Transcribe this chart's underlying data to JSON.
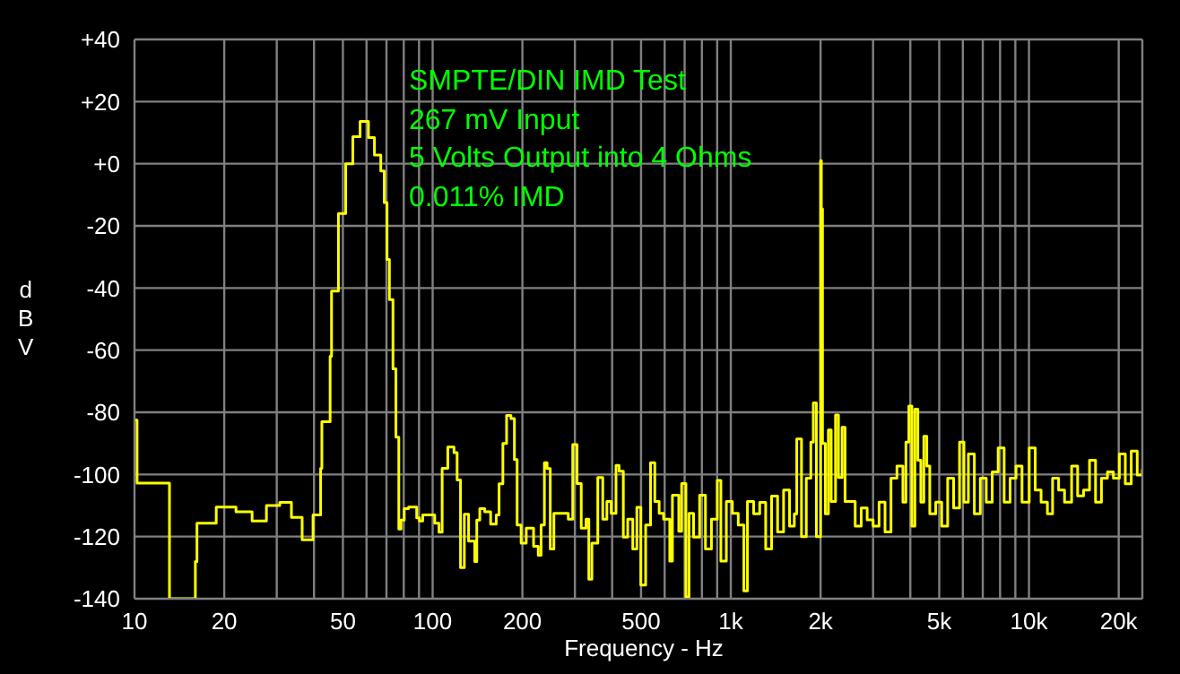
{
  "chart_data": {
    "type": "step",
    "xlabel": "Frequency - Hz",
    "ylabel": "dBV",
    "annotations": [
      "SMPTE/DIN IMD Test",
      "267 mV Input",
      "5 Volts Output into 4 Ohms",
      "0.011% IMD"
    ],
    "log": "x",
    "grid": true,
    "color": "#ffff00",
    "xlim": [
      10,
      24000
    ],
    "ylim": [
      -140,
      40
    ],
    "xticks": [
      10,
      20,
      {
        "value": 30,
        "label": null
      },
      {
        "value": 40,
        "label": null
      },
      50,
      {
        "value": 60,
        "label": null
      },
      {
        "value": 70,
        "label": null
      },
      {
        "value": 80,
        "label": null
      },
      {
        "value": 90,
        "label": null
      },
      100,
      200,
      {
        "value": 300,
        "label": null
      },
      {
        "value": 400,
        "label": null
      },
      500,
      {
        "value": 600,
        "label": null
      },
      {
        "value": 700,
        "label": null
      },
      {
        "value": 800,
        "label": null
      },
      {
        "value": 900,
        "label": null
      },
      {
        "value": 1000,
        "label": "1k"
      },
      {
        "value": 2000,
        "label": "2k"
      },
      {
        "value": 3000,
        "label": null
      },
      {
        "value": 4000,
        "label": null
      },
      {
        "value": 5000,
        "label": "5k"
      },
      {
        "value": 6000,
        "label": null
      },
      {
        "value": 7000,
        "label": null
      },
      {
        "value": 8000,
        "label": null
      },
      {
        "value": 9000,
        "label": null
      },
      {
        "value": 10000,
        "label": "10k"
      },
      {
        "value": 20000,
        "label": "20k"
      }
    ],
    "yticks": [
      {
        "value": 40,
        "label": "+40"
      },
      {
        "value": 20,
        "label": "+20"
      },
      {
        "value": 0,
        "label": "+0"
      },
      -20,
      -40,
      -60,
      -80,
      -100,
      -120,
      -140
    ],
    "x": [
      10,
      10.2,
      13.1,
      16,
      16.2,
      18.8,
      21.9,
      24.8,
      27.7,
      30.7,
      33.6,
      36.5,
      39.7,
      42.1,
      42.5,
      45.3,
      45.8,
      48.3,
      51.1,
      54,
      57.1,
      60.9,
      63.8,
      67,
      68.8,
      70.3,
      71.6,
      73.6,
      75.3,
      77,
      78.3,
      80.3,
      83,
      85.8,
      88.4,
      90.3,
      92.6,
      96.8,
      101.6,
      105,
      107.6,
      112.4,
      117.9,
      120.8,
      124,
      127.7,
      132,
      138.4,
      140.6,
      143.9,
      149.5,
      156.5,
      163.4,
      167,
      172,
      177,
      183,
      188,
      192,
      198,
      206,
      218,
      226,
      231,
      237,
      242,
      248,
      255,
      272,
      285,
      295,
      305,
      315,
      327,
      334,
      342,
      358,
      372,
      384,
      397,
      412,
      422,
      436,
      451,
      469,
      484,
      499,
      518,
      538,
      556,
      575,
      595,
      624,
      637,
      669,
      684,
      707,
      724,
      750,
      786,
      822,
      861,
      901,
      926,
      966,
      1012,
      1059,
      1106,
      1137,
      1193,
      1250,
      1309,
      1370,
      1435,
      1503,
      1574,
      1633,
      1664,
      1726,
      1791,
      1855,
      1891,
      1936,
      2000,
      2012,
      2030,
      2075,
      2124,
      2171,
      2245,
      2296,
      2362,
      2416,
      2497,
      2613,
      2737,
      2866,
      3001,
      3142,
      3290,
      3445,
      3607,
      3777,
      3866,
      3955,
      4048,
      4143,
      4239,
      4338,
      4439,
      4542,
      4648,
      4867,
      5096,
      5337,
      5588,
      5850,
      6053,
      6263,
      6558,
      6867,
      7190,
      7529,
      7883,
      8254,
      8643,
      9050,
      9476,
      10019,
      10495,
      10980,
      11530,
      12000,
      12570,
      13160,
      13900,
      14560,
      15240,
      15960,
      16720,
      17500,
      18330,
      19190,
      20100,
      21040,
      22030,
      23070,
      24000
    ],
    "values": [
      -82.5,
      -102.8,
      -140,
      -128,
      -115.7,
      -110.5,
      -112,
      -115,
      -110,
      -109,
      -113.8,
      -121,
      -113,
      -98,
      -83,
      -62,
      -41,
      -16,
      0,
      8.7,
      13.6,
      8.4,
      2.8,
      -2.3,
      -12.5,
      -30.8,
      -43.7,
      -66,
      -88,
      -117.6,
      -114.7,
      -111,
      -110.5,
      -110.5,
      -114,
      -115,
      -113,
      -113,
      -115.7,
      -118.6,
      -98,
      -91.2,
      -93,
      -101.8,
      -130,
      -112.8,
      -121.5,
      -128,
      -114.7,
      -111,
      -112,
      -116,
      -113,
      -103,
      -90,
      -81,
      -82,
      -95.2,
      -116.3,
      -122.1,
      -117.3,
      -123.1,
      -126,
      -116.3,
      -96.2,
      -98.1,
      -124,
      -112.5,
      -112.5,
      -114.4,
      -90.4,
      -102.9,
      -117.3,
      -114.4,
      -133.7,
      -122.1,
      -101,
      -114.4,
      -108.7,
      -112.5,
      -97.1,
      -99,
      -120.2,
      -114.4,
      -124,
      -110.6,
      -135.6,
      -116.3,
      -96.2,
      -108.7,
      -112.5,
      -114.4,
      -127.9,
      -106.7,
      -118.3,
      -102.9,
      -139.4,
      -112.5,
      -120.2,
      -106.7,
      -124,
      -114.4,
      -101.9,
      -127.9,
      -108.7,
      -112.5,
      -116.3,
      -137.5,
      -108.7,
      -112.7,
      -109,
      -124,
      -107,
      -118.5,
      -105,
      -116.6,
      -112.7,
      -88.6,
      -120,
      -101.2,
      -89.6,
      -77,
      -120,
      1,
      -14.5,
      -90,
      -112.7,
      -85.7,
      -108.7,
      -80.9,
      -101,
      -84.8,
      -108.7,
      -108.7,
      -116.6,
      -110.8,
      -114.6,
      -116.6,
      -108.9,
      -118.5,
      -101.2,
      -97.3,
      -108.9,
      -89.6,
      -78,
      -116.6,
      -79,
      -95.4,
      -108.9,
      -87.7,
      -97.3,
      -112.7,
      -108.9,
      -116.6,
      -101.2,
      -110.8,
      -89.6,
      -108.9,
      -93.4,
      -112.7,
      -101.2,
      -108.9,
      -99.2,
      -91.5,
      -108.9,
      -101.2,
      -97.3,
      -108.9,
      -91.5,
      -105,
      -108.9,
      -112.7,
      -101.2,
      -105,
      -108.9,
      -97.3,
      -106.9,
      -105,
      -95.4,
      -108.9,
      -101.2,
      -99.2,
      -101.2,
      -93.4,
      -103,
      -92.5,
      -100.2,
      -98.3
    ]
  }
}
